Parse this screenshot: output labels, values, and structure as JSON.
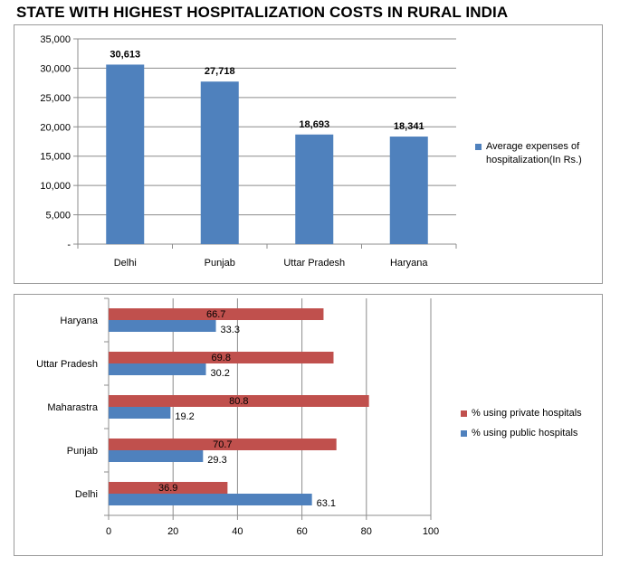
{
  "title": "STATE WITH HIGHEST HOSPITALIZATION COSTS IN RURAL INDIA",
  "chart_data": [
    {
      "type": "bar",
      "categories": [
        "Delhi",
        "Punjab",
        "Uttar Pradesh",
        "Haryana"
      ],
      "series": [
        {
          "name": "Average expenses of hospitalization(In  Rs.)",
          "color": "#4f81bd",
          "values": [
            30613,
            27718,
            18693,
            18341
          ],
          "data_labels": [
            "30,613",
            "27,718",
            "18,693",
            "18,341"
          ]
        }
      ],
      "ylim": [
        0,
        35000
      ],
      "yticks": [
        0,
        5000,
        10000,
        15000,
        20000,
        25000,
        30000,
        35000
      ],
      "ytick_labels": [
        "-",
        "5,000",
        "10,000",
        "15,000",
        "20,000",
        "25,000",
        "30,000",
        "35,000"
      ],
      "grid": true,
      "legend": "right"
    },
    {
      "type": "bar",
      "orientation": "horizontal",
      "categories": [
        "Haryana",
        "Uttar Pradesh",
        "Maharastra",
        "Punjab",
        "Delhi"
      ],
      "series": [
        {
          "name": "% using private hospitals",
          "color": "#c0504d",
          "values": [
            66.7,
            69.8,
            80.8,
            70.7,
            36.9
          ],
          "data_labels": [
            "66.7",
            "69.8",
            "80.8",
            "70.7",
            "36.9"
          ]
        },
        {
          "name": "% using public hospitals",
          "color": "#4f81bd",
          "values": [
            33.3,
            30.2,
            19.2,
            29.3,
            63.1
          ],
          "data_labels": [
            "33.3",
            "30.2",
            "19.2",
            "29.3",
            "63.1"
          ]
        }
      ],
      "xlim": [
        0,
        100
      ],
      "xticks": [
        0,
        20,
        40,
        60,
        80,
        100
      ],
      "xtick_labels": [
        "0",
        "20",
        "40",
        "60",
        "80",
        "100"
      ],
      "grid": true,
      "legend": "right"
    }
  ]
}
